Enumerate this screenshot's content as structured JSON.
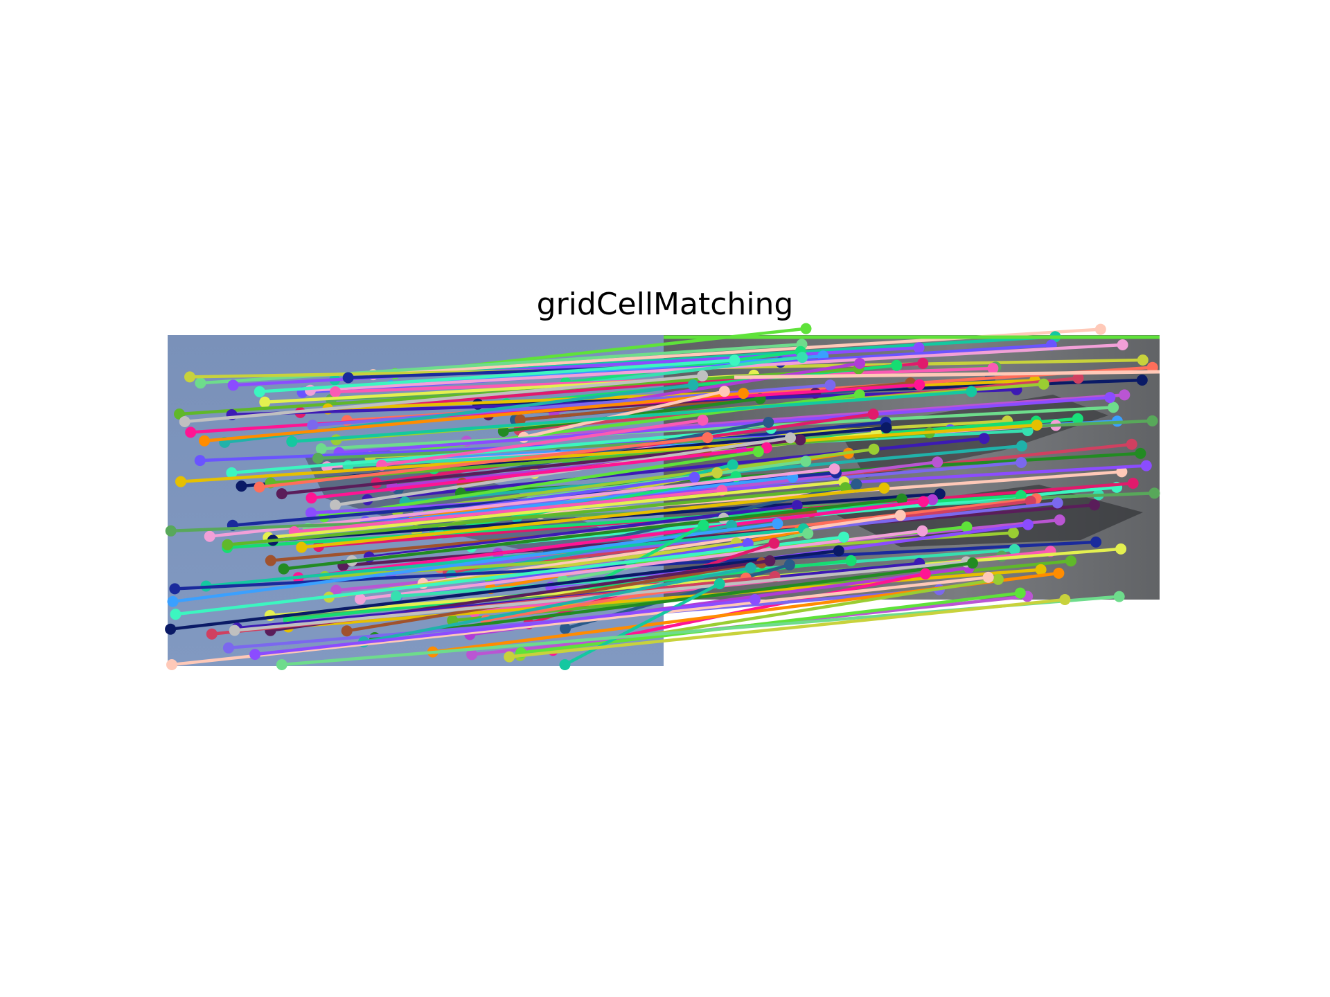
{
  "title": "gridCellMatching",
  "image": {
    "left_panel": "sky photo with an aircraft (left image)",
    "right_panel": "grayscale photo with an aircraft (right image)",
    "background_left_color": "#7a92bb",
    "background_right_color": "#6a6c70"
  },
  "matches": {
    "description": "keypoint correspondences drawn as colored lines with endpoint dots",
    "colors": [
      "#5fe23a",
      "#ffc9b8",
      "#14c8a0",
      "#6edc8c",
      "#8b4cff",
      "#c8d23c",
      "#1a2a9c",
      "#3aa0ff",
      "#18e07a",
      "#6a54ff",
      "#f2a0d8",
      "#36e0b0",
      "#58a85a",
      "#3cf6c0",
      "#fa5ab4",
      "#e11a6c",
      "#16dd72",
      "#e4f050",
      "#0a1a66",
      "#2a5a8a",
      "#60b82a",
      "#e6c000",
      "#b03cd6",
      "#ff6e5a",
      "#a0522d",
      "#5a1d5a",
      "#3c1ab4",
      "#d04060",
      "#c0c0c0",
      "#228b22",
      "#ff1493",
      "#7b68ee",
      "#20b2aa",
      "#ff8c00",
      "#9acd32",
      "#ba55d3"
    ]
  }
}
